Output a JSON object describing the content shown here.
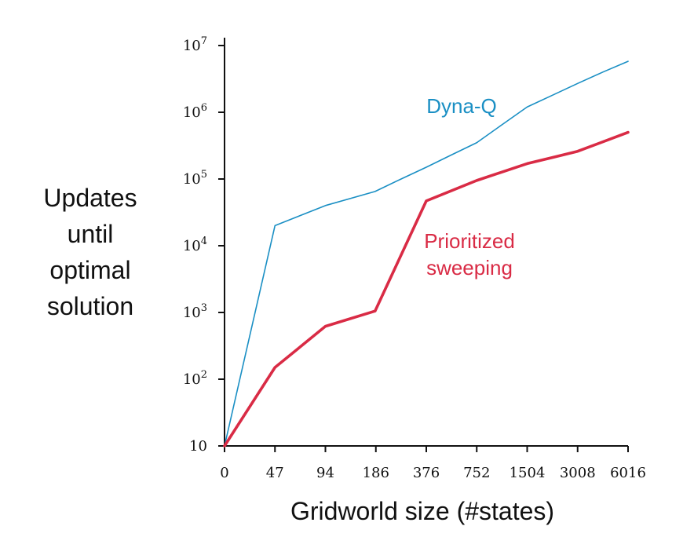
{
  "chart_data": {
    "type": "line",
    "xlabel": "Gridworld size (#states)",
    "ylabel_lines": [
      "Updates",
      "until",
      "optimal",
      "solution"
    ],
    "x_tick_labels": [
      "0",
      "47",
      "94",
      "186",
      "376",
      "752",
      "1504",
      "3008",
      "6016"
    ],
    "y_scale": "log",
    "ylim": [
      10,
      10000000
    ],
    "y_ticks": [
      {
        "value": 10,
        "base": "10",
        "exp": ""
      },
      {
        "value": 100,
        "base": "10",
        "exp": "2"
      },
      {
        "value": 1000,
        "base": "10",
        "exp": "3"
      },
      {
        "value": 10000,
        "base": "10",
        "exp": "4"
      },
      {
        "value": 100000,
        "base": "10",
        "exp": "5"
      },
      {
        "value": 1000000,
        "base": "10",
        "exp": "6"
      },
      {
        "value": 10000000,
        "base": "10",
        "exp": "7"
      }
    ],
    "grid": false,
    "series": [
      {
        "name": "Dyna-Q",
        "label_lines": [
          "Dyna-Q"
        ],
        "color": "#1a8fc4",
        "points": [
          [
            0,
            10
          ],
          [
            47,
            20000
          ],
          [
            94,
            40000
          ],
          [
            186,
            65000
          ],
          [
            266,
            100000
          ],
          [
            376,
            150000
          ],
          [
            532,
            230000
          ],
          [
            752,
            350000
          ],
          [
            1064,
            650000
          ],
          [
            1504,
            1200000
          ],
          [
            2127,
            1800000
          ],
          [
            3008,
            2700000
          ],
          [
            4254,
            4000000
          ],
          [
            6016,
            5800000
          ]
        ]
      },
      {
        "name": "Prioritized sweeping",
        "label_lines": [
          "Prioritized",
          "sweeping"
        ],
        "color": "#d92b45",
        "points": [
          [
            0,
            10
          ],
          [
            47,
            150
          ],
          [
            94,
            620
          ],
          [
            186,
            1050
          ],
          [
            376,
            47000
          ],
          [
            752,
            95000
          ],
          [
            1504,
            170000
          ],
          [
            2127,
            210000
          ],
          [
            3008,
            260000
          ],
          [
            6016,
            500000
          ]
        ]
      }
    ]
  }
}
